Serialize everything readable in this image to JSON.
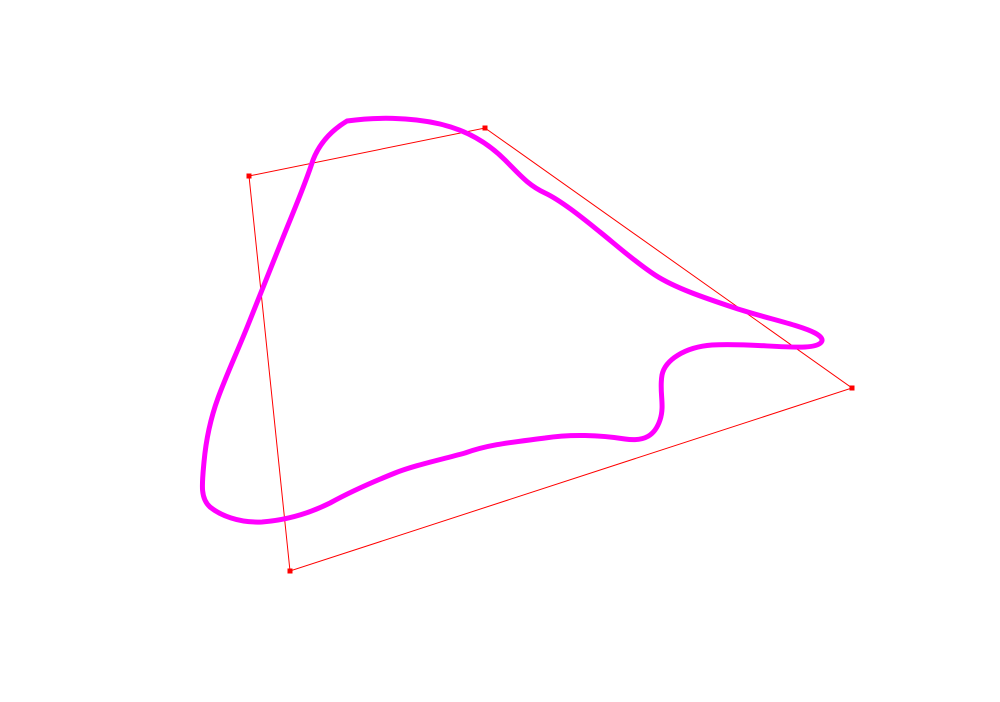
{
  "canvas": {
    "background": "#ffffff"
  },
  "control_polygon": {
    "stroke_color": "#ff0000",
    "vertex_color": "#ff0000",
    "vertex_count": 4
  },
  "closed_curve": {
    "stroke_color": "#ff00ff",
    "closed": true
  }
}
